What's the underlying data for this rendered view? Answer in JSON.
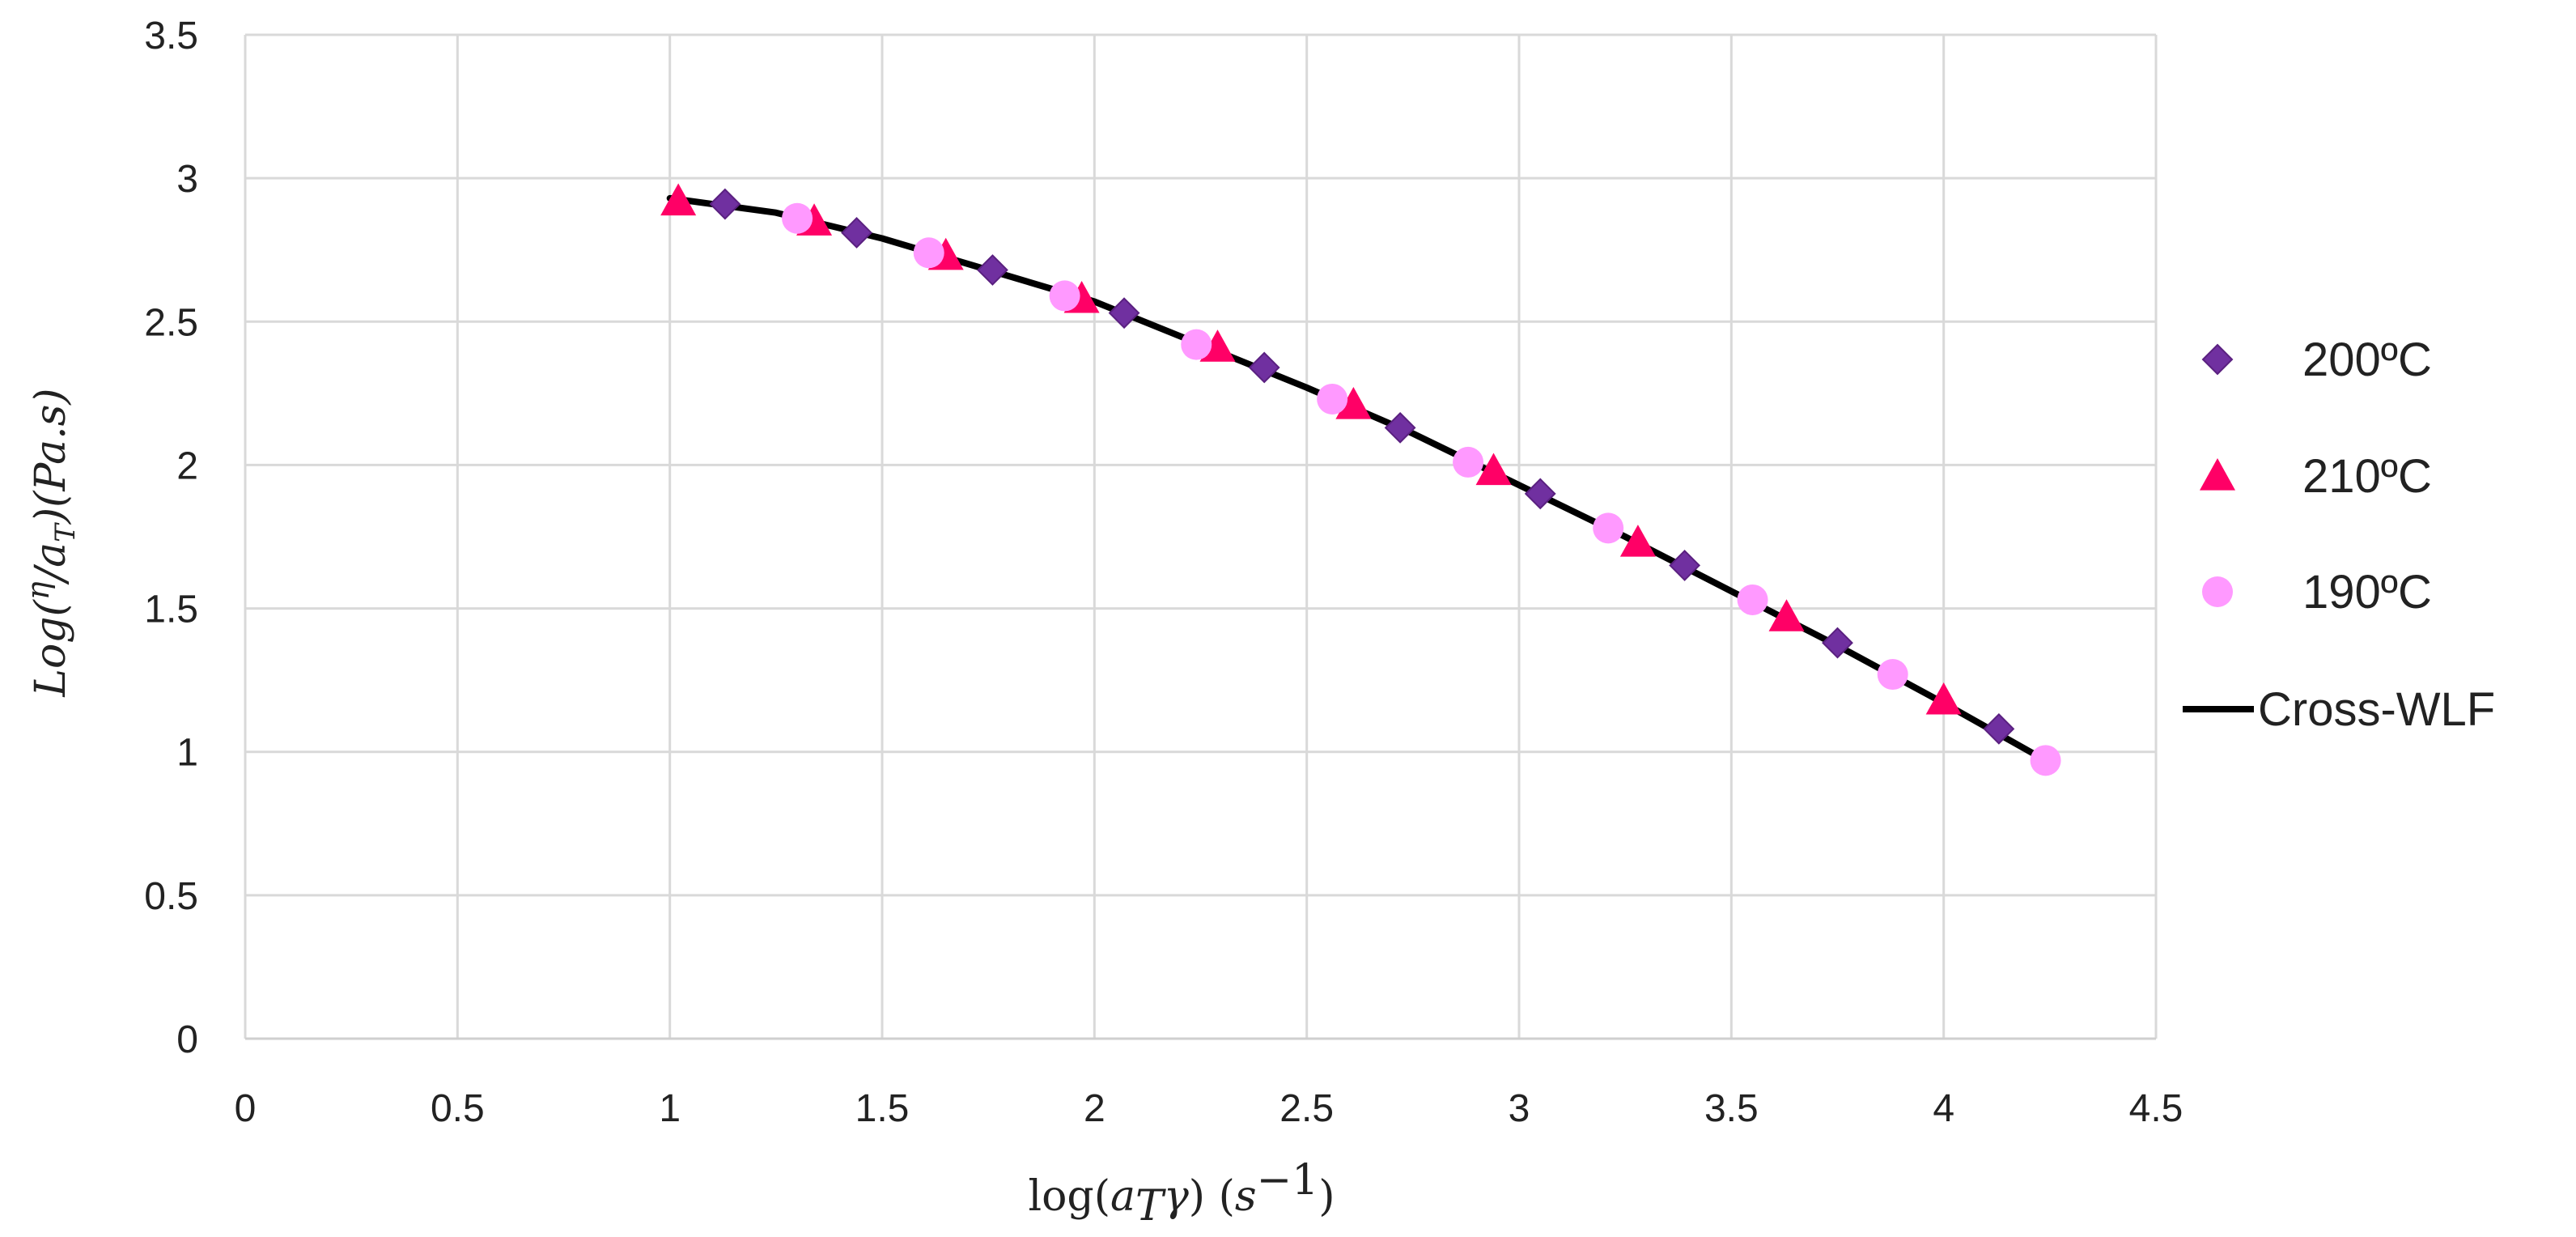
{
  "chart_data": {
    "type": "scatter",
    "xlabel": "log(a_T γ) (s^-1)",
    "ylabel": "Log(η/a_T)(Pa.s)",
    "xlim": [
      0,
      4.5
    ],
    "ylim": [
      0,
      3.5
    ],
    "x_ticks": [
      "0",
      "0.5",
      "1",
      "1.5",
      "2",
      "2.5",
      "3",
      "3.5",
      "4",
      "4.5"
    ],
    "y_ticks": [
      "0",
      "0.5",
      "1",
      "1.5",
      "2",
      "2.5",
      "3",
      "3.5"
    ],
    "grid": true,
    "legend_position": "right",
    "series": [
      {
        "name": "200ºC",
        "marker": "diamond",
        "color": "#7030A0",
        "x": [
          1.13,
          1.44,
          1.76,
          2.07,
          2.4,
          2.72,
          3.05,
          3.39,
          3.75,
          4.13
        ],
        "y": [
          2.91,
          2.81,
          2.68,
          2.53,
          2.34,
          2.13,
          1.9,
          1.65,
          1.38,
          1.08
        ]
      },
      {
        "name": "210ºC",
        "marker": "triangle",
        "color": "#FF0066",
        "x": [
          1.02,
          1.34,
          1.65,
          1.97,
          2.29,
          2.61,
          2.94,
          3.28,
          3.63,
          4.0
        ],
        "y": [
          2.92,
          2.85,
          2.73,
          2.58,
          2.41,
          2.21,
          1.98,
          1.73,
          1.47,
          1.18
        ]
      },
      {
        "name": "190ºC",
        "marker": "circle",
        "color": "#FF99FF",
        "x": [
          1.3,
          1.61,
          1.93,
          2.24,
          2.56,
          2.88,
          3.21,
          3.55,
          3.88,
          4.24
        ],
        "y": [
          2.86,
          2.74,
          2.59,
          2.42,
          2.23,
          2.01,
          1.78,
          1.53,
          1.27,
          0.97
        ]
      },
      {
        "name": "Cross-WLF",
        "marker": "line",
        "color": "#000000",
        "x": [
          1.0,
          1.25,
          1.5,
          1.75,
          2.0,
          2.25,
          2.5,
          2.75,
          3.0,
          3.25,
          3.5,
          3.75,
          4.0,
          4.24
        ],
        "y": [
          2.93,
          2.88,
          2.79,
          2.68,
          2.57,
          2.42,
          2.27,
          2.11,
          1.93,
          1.75,
          1.56,
          1.37,
          1.17,
          0.97
        ]
      }
    ]
  }
}
